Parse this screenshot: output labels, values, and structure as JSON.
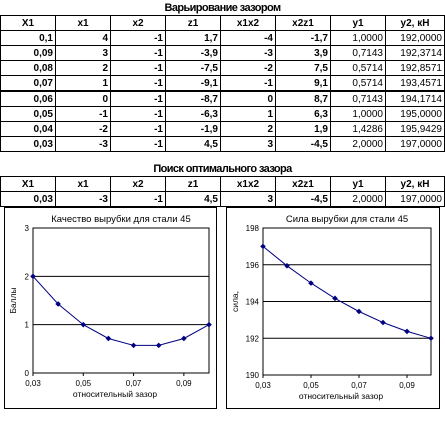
{
  "table1": {
    "title": "Варьирование зазором",
    "headers": [
      "X1",
      "x1",
      "x2",
      "z1",
      "x1x2",
      "x2z1",
      "y1",
      "y2, кН"
    ],
    "rows": [
      [
        "0,1",
        "4",
        "-1",
        "1,7",
        "-4",
        "-1,7",
        "1,0000",
        "192,0000"
      ],
      [
        "0,09",
        "3",
        "-1",
        "-3,9",
        "-3",
        "3,9",
        "0,7143",
        "192,3714"
      ],
      [
        "0,08",
        "2",
        "-1",
        "-7,5",
        "-2",
        "7,5",
        "0,5714",
        "192,8571"
      ],
      [
        "0,07",
        "1",
        "-1",
        "-9,1",
        "-1",
        "9,1",
        "0,5714",
        "193,4571"
      ],
      [
        "0,06",
        "0",
        "-1",
        "-8,7",
        "0",
        "8,7",
        "0,7143",
        "194,1714"
      ],
      [
        "0,05",
        "-1",
        "-1",
        "-6,3",
        "1",
        "6,3",
        "1,0000",
        "195,0000"
      ],
      [
        "0,04",
        "-2",
        "-1",
        "-1,9",
        "2",
        "1,9",
        "1,4286",
        "195,9429"
      ],
      [
        "0,03",
        "-3",
        "-1",
        "4,5",
        "3",
        "-4,5",
        "2,0000",
        "197,0000"
      ]
    ]
  },
  "table2": {
    "title": "Поиск оптимального зазора",
    "headers": [
      "X1",
      "x1",
      "x2",
      "z1",
      "x1x2",
      "x2z1",
      "y1",
      "y2, кН"
    ],
    "rows": [
      [
        "0,03",
        "-3",
        "-1",
        "4,5",
        "3",
        "-4,5",
        "2,0000",
        "197,0000"
      ]
    ]
  },
  "chart_data": [
    {
      "type": "line",
      "title": "Качество вырубки для стали 45",
      "xlabel": "относительный зазор",
      "ylabel": "Баллы",
      "x": [
        0.03,
        0.04,
        0.05,
        0.06,
        0.07,
        0.08,
        0.09,
        0.1
      ],
      "series": [
        {
          "values": [
            2.0,
            1.4286,
            1.0,
            0.7143,
            0.5714,
            0.5714,
            0.7143,
            1.0
          ]
        }
      ],
      "xticks": [
        "0,03",
        "0,05",
        "0,07",
        "0,09"
      ],
      "yticks": [
        "0",
        "1",
        "2",
        "3"
      ],
      "xlim": [
        0.03,
        0.1
      ],
      "ylim": [
        0,
        3
      ],
      "grid": true,
      "color": "#000080"
    },
    {
      "type": "line",
      "title": "Сила вырубки для стали 45",
      "xlabel": "относительный зазор",
      "ylabel": "сила,",
      "x": [
        0.03,
        0.04,
        0.05,
        0.06,
        0.07,
        0.08,
        0.09,
        0.1
      ],
      "series": [
        {
          "values": [
            197.0,
            195.9429,
            195.0,
            194.1714,
            193.4571,
            192.8571,
            192.3714,
            192.0
          ]
        }
      ],
      "xticks": [
        "0,03",
        "0,05",
        "0,07",
        "0,09"
      ],
      "yticks": [
        "190",
        "192",
        "194",
        "196",
        "198"
      ],
      "xlim": [
        0.03,
        0.1
      ],
      "ylim": [
        190,
        198
      ],
      "grid": true,
      "color": "#000080"
    }
  ]
}
